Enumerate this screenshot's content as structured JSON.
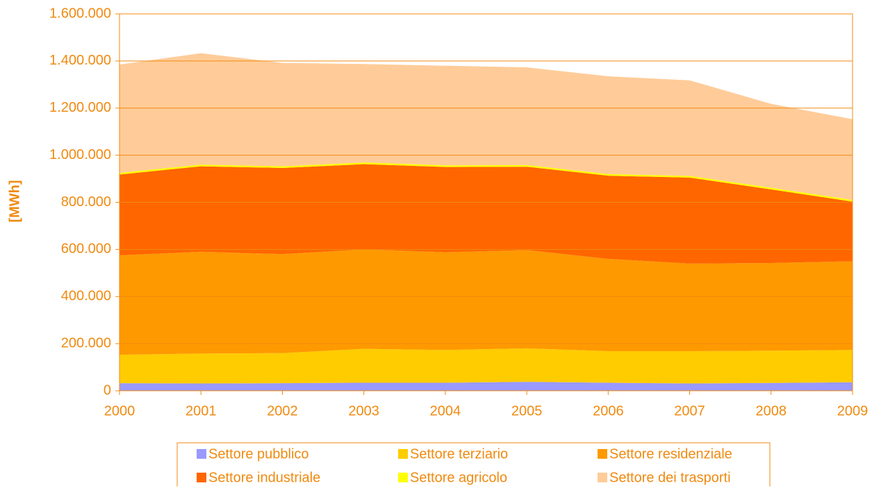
{
  "chart_data": {
    "type": "stacked_area",
    "y_label": "[MWh]",
    "categories": [
      "2000",
      "2001",
      "2002",
      "2003",
      "2004",
      "2005",
      "2006",
      "2007",
      "2008",
      "2009"
    ],
    "series": [
      {
        "name": "Settore pubblico",
        "color": "#9999ff",
        "values": [
          32000,
          31000,
          32000,
          34000,
          34000,
          38000,
          34000,
          31000,
          33000,
          36000
        ]
      },
      {
        "name": "Settore terziario",
        "color": "#ffcc00",
        "values": [
          121000,
          127000,
          128000,
          144000,
          139000,
          142000,
          134000,
          137000,
          137000,
          137000
        ]
      },
      {
        "name": "Settore residenziale",
        "color": "#ff9900",
        "values": [
          422000,
          432000,
          420000,
          422000,
          415000,
          417000,
          392000,
          372000,
          372000,
          377000
        ]
      },
      {
        "name": "Settore industriale",
        "color": "#ff6600",
        "values": [
          343000,
          363000,
          366000,
          362000,
          362000,
          354000,
          353000,
          365000,
          313000,
          253000
        ]
      },
      {
        "name": "Settore agricolo",
        "color": "#ffff00",
        "values": [
          7000,
          7000,
          7000,
          7000,
          7000,
          7000,
          7000,
          7000,
          7000,
          7000
        ]
      },
      {
        "name": "Settore dei trasporti",
        "color": "#ffcc99",
        "values": [
          460000,
          473000,
          439000,
          418000,
          423000,
          415000,
          415000,
          406000,
          356000,
          343000
        ]
      }
    ],
    "ylim": [
      0,
      1600000
    ],
    "yticks": [
      0,
      {
        "value": 200000,
        "label": "200.000"
      },
      {
        "value": 400000,
        "label": "400.000"
      },
      {
        "value": 600000,
        "label": "600.000"
      },
      {
        "value": 800000,
        "label": "800.000"
      },
      {
        "value": 1000000,
        "label": "1.000.000"
      },
      {
        "value": 1200000,
        "label": "1.200.000"
      },
      {
        "value": 1400000,
        "label": "1.400.000"
      },
      {
        "value": 1600000,
        "label": "1.600.000"
      }
    ],
    "grid": true,
    "axis_color": "#f08a10",
    "legend": "bottom"
  }
}
